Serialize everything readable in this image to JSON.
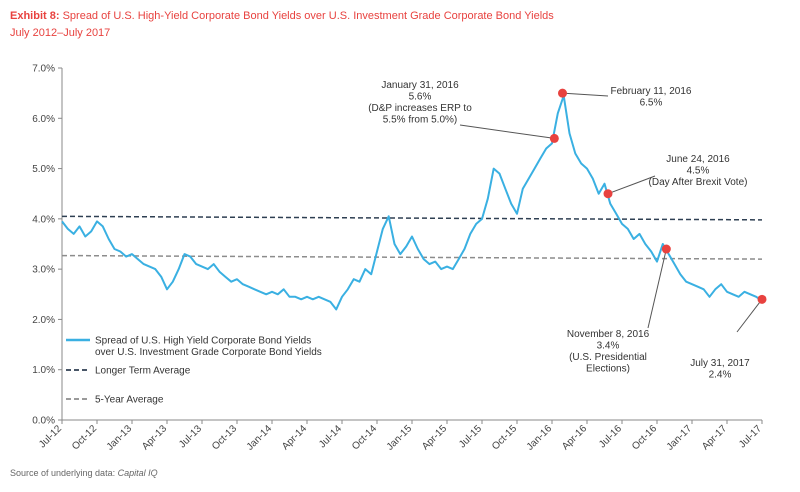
{
  "header": {
    "exhibit": "Exhibit 8:",
    "title": "Spread of U.S. High-Yield Corporate Bond Yields over U.S. Investment Grade Corporate Bond Yields",
    "subtitle": "July 2012–July 2017"
  },
  "footer": {
    "source_prefix": "Source of underlying data:",
    "source_name": "Capital IQ"
  },
  "colors": {
    "accent": "#e8423f",
    "series": "#3ab0e2",
    "long_avg": "#2e3f52",
    "five_avg": "#8c8c8c",
    "axis": "#888888"
  },
  "chart_data": {
    "type": "line",
    "x_unit": "months since Jul-12",
    "xlim": [
      0,
      60
    ],
    "ylim": [
      0,
      7
    ],
    "y_ticks": [
      {
        "v": 0,
        "label": "0.0%"
      },
      {
        "v": 1,
        "label": "1.0%"
      },
      {
        "v": 2,
        "label": "2.0%"
      },
      {
        "v": 3,
        "label": "3.0%"
      },
      {
        "v": 4,
        "label": "4.0%"
      },
      {
        "v": 5,
        "label": "5.0%"
      },
      {
        "v": 6,
        "label": "6.0%"
      },
      {
        "v": 7,
        "label": "7.0%"
      }
    ],
    "x_ticks": [
      "Jul-12",
      "Oct-12",
      "Jan-13",
      "Apr-13",
      "Jul-13",
      "Oct-13",
      "Jan-14",
      "Apr-14",
      "Jul-14",
      "Oct-14",
      "Jan-15",
      "Apr-15",
      "Jul-15",
      "Oct-15",
      "Jan-16",
      "Apr-16",
      "Jul-16",
      "Oct-16",
      "Jan-17",
      "Apr-17",
      "Jul-17"
    ],
    "series": [
      {
        "name": "Spread of U.S. High Yield Corporate Bond Yields over U.S. Investment Grade Corporate Bond Yields",
        "points": [
          [
            0,
            3.95
          ],
          [
            0.5,
            3.8
          ],
          [
            1,
            3.7
          ],
          [
            1.5,
            3.85
          ],
          [
            2,
            3.65
          ],
          [
            2.5,
            3.75
          ],
          [
            3,
            3.95
          ],
          [
            3.5,
            3.85
          ],
          [
            4,
            3.6
          ],
          [
            4.5,
            3.4
          ],
          [
            5,
            3.35
          ],
          [
            5.5,
            3.25
          ],
          [
            6,
            3.3
          ],
          [
            6.5,
            3.2
          ],
          [
            7,
            3.1
          ],
          [
            7.5,
            3.05
          ],
          [
            8,
            3.0
          ],
          [
            8.5,
            2.85
          ],
          [
            9,
            2.6
          ],
          [
            9.5,
            2.75
          ],
          [
            10,
            3.0
          ],
          [
            10.5,
            3.3
          ],
          [
            11,
            3.25
          ],
          [
            11.5,
            3.1
          ],
          [
            12,
            3.05
          ],
          [
            12.5,
            3.0
          ],
          [
            13,
            3.1
          ],
          [
            13.5,
            2.95
          ],
          [
            14,
            2.85
          ],
          [
            14.5,
            2.75
          ],
          [
            15,
            2.8
          ],
          [
            15.5,
            2.7
          ],
          [
            16,
            2.65
          ],
          [
            16.5,
            2.6
          ],
          [
            17,
            2.55
          ],
          [
            17.5,
            2.5
          ],
          [
            18,
            2.55
          ],
          [
            18.5,
            2.5
          ],
          [
            19,
            2.6
          ],
          [
            19.5,
            2.45
          ],
          [
            20,
            2.45
          ],
          [
            20.5,
            2.4
          ],
          [
            21,
            2.45
          ],
          [
            21.5,
            2.4
          ],
          [
            22,
            2.45
          ],
          [
            22.5,
            2.4
          ],
          [
            23,
            2.35
          ],
          [
            23.5,
            2.2
          ],
          [
            24,
            2.45
          ],
          [
            24.5,
            2.6
          ],
          [
            25,
            2.8
          ],
          [
            25.5,
            2.75
          ],
          [
            26,
            3.0
          ],
          [
            26.5,
            2.9
          ],
          [
            27,
            3.35
          ],
          [
            27.5,
            3.8
          ],
          [
            28,
            4.05
          ],
          [
            28.5,
            3.5
          ],
          [
            29,
            3.3
          ],
          [
            29.5,
            3.45
          ],
          [
            30,
            3.65
          ],
          [
            30.5,
            3.4
          ],
          [
            31,
            3.2
          ],
          [
            31.5,
            3.1
          ],
          [
            32,
            3.15
          ],
          [
            32.5,
            3.0
          ],
          [
            33,
            3.05
          ],
          [
            33.5,
            3.0
          ],
          [
            34,
            3.2
          ],
          [
            34.5,
            3.4
          ],
          [
            35,
            3.7
          ],
          [
            35.5,
            3.9
          ],
          [
            36,
            4.0
          ],
          [
            36.5,
            4.4
          ],
          [
            37,
            5.0
          ],
          [
            37.5,
            4.9
          ],
          [
            38,
            4.6
          ],
          [
            38.5,
            4.3
          ],
          [
            39,
            4.1
          ],
          [
            39.5,
            4.6
          ],
          [
            40,
            4.8
          ],
          [
            40.5,
            5.0
          ],
          [
            41,
            5.2
          ],
          [
            41.5,
            5.4
          ],
          [
            42,
            5.5
          ],
          [
            42.5,
            6.1
          ],
          [
            43,
            6.45
          ],
          [
            43.5,
            5.7
          ],
          [
            44,
            5.3
          ],
          [
            44.5,
            5.1
          ],
          [
            45,
            5.0
          ],
          [
            45.5,
            4.8
          ],
          [
            46,
            4.5
          ],
          [
            46.5,
            4.7
          ],
          [
            47,
            4.3
          ],
          [
            47.5,
            4.1
          ],
          [
            48,
            3.9
          ],
          [
            48.5,
            3.8
          ],
          [
            49,
            3.6
          ],
          [
            49.5,
            3.7
          ],
          [
            50,
            3.5
          ],
          [
            50.5,
            3.35
          ],
          [
            51,
            3.15
          ],
          [
            51.5,
            3.5
          ],
          [
            52,
            3.3
          ],
          [
            52.5,
            3.1
          ],
          [
            53,
            2.9
          ],
          [
            53.5,
            2.75
          ],
          [
            54,
            2.7
          ],
          [
            54.5,
            2.65
          ],
          [
            55,
            2.6
          ],
          [
            55.5,
            2.45
          ],
          [
            56,
            2.6
          ],
          [
            56.5,
            2.7
          ],
          [
            57,
            2.55
          ],
          [
            57.5,
            2.5
          ],
          [
            58,
            2.45
          ],
          [
            58.5,
            2.55
          ],
          [
            59,
            2.5
          ],
          [
            59.5,
            2.45
          ],
          [
            60,
            2.37
          ]
        ]
      }
    ],
    "reference_lines": [
      {
        "name": "Longer Term Average",
        "from": 4.05,
        "to": 3.98
      },
      {
        "name": "5-Year Average",
        "from": 3.27,
        "to": 3.2
      }
    ],
    "highlight_points": [
      {
        "x": 42.2,
        "y": 5.6
      },
      {
        "x": 42.9,
        "y": 6.5
      },
      {
        "x": 46.8,
        "y": 4.5
      },
      {
        "x": 51.8,
        "y": 3.4
      },
      {
        "x": 60,
        "y": 2.4
      }
    ],
    "annotations": [
      {
        "lines": [
          "January 31, 2016",
          "5.6%",
          "(D&P increases ERP to",
          "5.5% from 5.0%)"
        ]
      },
      {
        "lines": [
          "February 11, 2016",
          "6.5%"
        ]
      },
      {
        "lines": [
          "June 24, 2016",
          "4.5%",
          "(Day After Brexit Vote)"
        ]
      },
      {
        "lines": [
          "November 8, 2016",
          "3.4%",
          "(U.S. Presidential",
          "Elections)"
        ]
      },
      {
        "lines": [
          "July 31, 2017",
          "2.4%"
        ]
      }
    ],
    "legend": [
      {
        "label": [
          "Spread of U.S. High Yield Corporate Bond Yields",
          "over U.S. Investment Grade Corporate Bond Yields"
        ]
      },
      {
        "label": [
          "Longer Term Average"
        ]
      },
      {
        "label": [
          "5-Year Average"
        ]
      }
    ]
  }
}
